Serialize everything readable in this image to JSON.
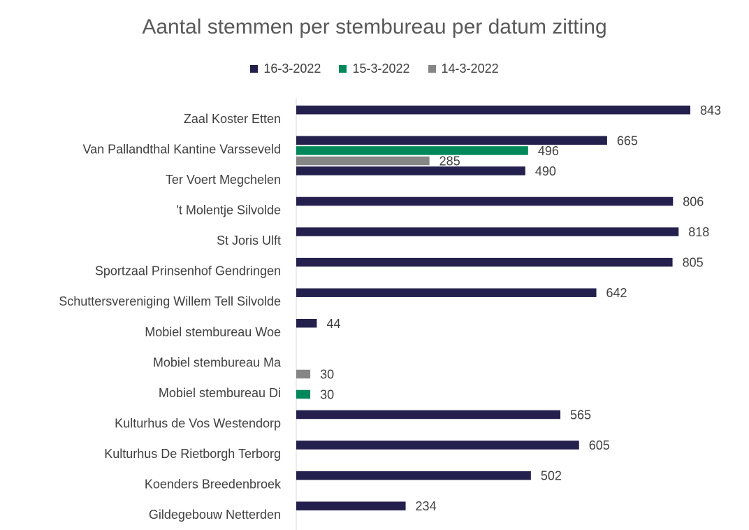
{
  "chart_data": {
    "type": "bar",
    "orientation": "horizontal",
    "title": "Aantal stemmen per stembureau per datum zitting",
    "xlabel": "",
    "ylabel": "",
    "xlim": [
      0,
      843
    ],
    "grid": false,
    "legend_position": "top",
    "categories": [
      "Zaal Koster Etten",
      "Van Pallandthal Kantine Varsseveld",
      "Ter Voert Megchelen",
      "'t Molentje Silvolde",
      "St Joris Ulft",
      "Sportzaal Prinsenhof Gendringen",
      "Schuttersvereniging Willem Tell Silvolde",
      "Mobiel stembureau Woe",
      "Mobiel stembureau Ma",
      "Mobiel stembureau Di",
      "Kulturhus de Vos Westendorp",
      "Kulturhus De Rietborgh Terborg",
      "Koenders Breedenbroek",
      "Gildegebouw Netterden"
    ],
    "series": [
      {
        "name": "16-3-2022",
        "color": "#23204d",
        "values": [
          843,
          665,
          490,
          806,
          818,
          805,
          642,
          44,
          null,
          null,
          565,
          605,
          502,
          234
        ]
      },
      {
        "name": "15-3-2022",
        "color": "#00875a",
        "values": [
          null,
          496,
          null,
          null,
          null,
          null,
          null,
          null,
          null,
          30,
          null,
          null,
          null,
          null
        ]
      },
      {
        "name": "14-3-2022",
        "color": "#868686",
        "values": [
          null,
          285,
          null,
          null,
          null,
          null,
          null,
          null,
          30,
          null,
          null,
          null,
          null,
          null
        ]
      }
    ]
  }
}
